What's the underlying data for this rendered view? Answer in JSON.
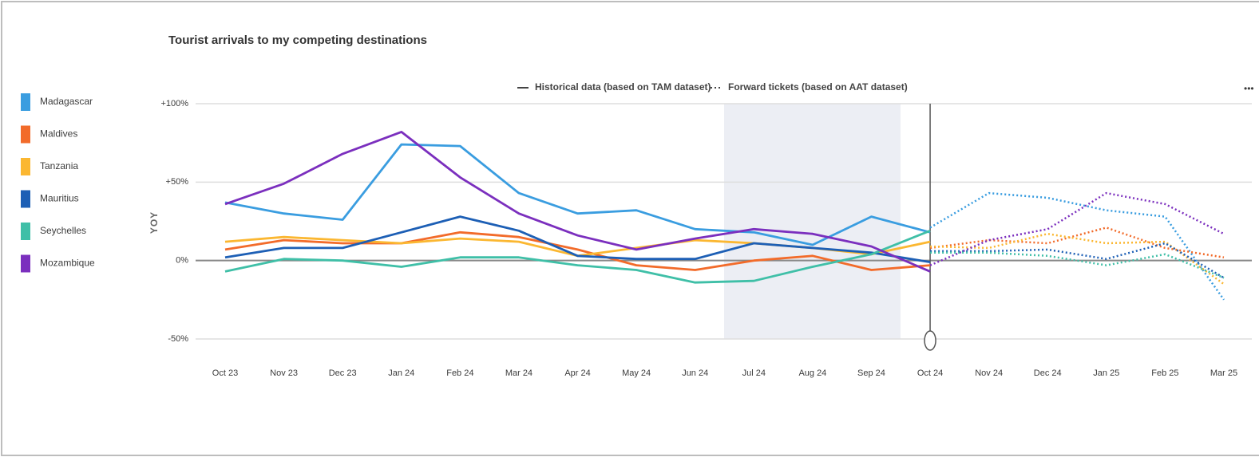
{
  "chart_data": {
    "type": "line",
    "title": "Tourist arrivals to my competing destinations",
    "y_label": "YOY",
    "line_styles": [
      {
        "label": "Historical data (based on TAM dataset)",
        "dashed": false
      },
      {
        "label": "Forward tickets (based on AAT dataset)",
        "dashed": true
      }
    ],
    "categories": [
      "Oct 23",
      "Nov 23",
      "Dec 23",
      "Jan 24",
      "Feb 24",
      "Mar 24",
      "Apr 24",
      "May 24",
      "Jun 24",
      "Jul 24",
      "Aug 24",
      "Sep 24",
      "Oct 24",
      "Nov 24",
      "Dec 24",
      "Jan 25",
      "Feb 25",
      "Mar 25"
    ],
    "ylim": [
      -50,
      100
    ],
    "yticks": [
      {
        "value": 100,
        "label": "+100%",
        "color": "#4e9a3e"
      },
      {
        "value": 50,
        "label": "+50%",
        "color": "#4e9a3e"
      },
      {
        "value": 0,
        "label": "0%",
        "color": "#333333"
      },
      {
        "value": -50,
        "label": "-50%",
        "color": "#c0392b"
      }
    ],
    "grid": true,
    "legend": "left",
    "series": [
      {
        "name": "Madagascar",
        "color": "#3a9de0",
        "values": [
          37,
          30,
          26,
          74,
          73,
          43,
          30,
          32,
          20,
          18,
          10,
          28,
          18,
          null,
          null,
          null,
          null,
          null
        ],
        "forward_values": [
          null,
          null,
          null,
          null,
          null,
          null,
          null,
          null,
          null,
          null,
          null,
          null,
          21,
          43,
          40,
          32,
          28,
          -25
        ]
      },
      {
        "name": "Maldives",
        "color": "#f26b2a",
        "values": [
          7,
          13,
          11,
          11,
          18,
          15,
          7,
          -3,
          -6,
          0,
          3,
          -6,
          -3,
          null,
          null,
          null,
          null,
          null
        ],
        "forward_values": [
          null,
          null,
          null,
          null,
          null,
          null,
          null,
          null,
          null,
          null,
          null,
          null,
          8,
          13,
          11,
          21,
          8,
          2
        ]
      },
      {
        "name": "Tanzania",
        "color": "#fbb731",
        "values": [
          12,
          15,
          13,
          11,
          14,
          12,
          3,
          8,
          13,
          11,
          8,
          4,
          12,
          null,
          null,
          null,
          null,
          null
        ],
        "forward_values": [
          null,
          null,
          null,
          null,
          null,
          null,
          null,
          null,
          null,
          null,
          null,
          null,
          9,
          8,
          17,
          11,
          12,
          -15
        ]
      },
      {
        "name": "Mauritius",
        "color": "#1d5fb5",
        "values": [
          2,
          8,
          8,
          18,
          28,
          19,
          3,
          1,
          1,
          11,
          8,
          5,
          -1,
          null,
          null,
          null,
          null,
          null
        ],
        "forward_values": [
          null,
          null,
          null,
          null,
          null,
          null,
          null,
          null,
          null,
          null,
          null,
          null,
          6,
          6,
          7,
          1,
          11,
          -11
        ]
      },
      {
        "name": "Seychelles",
        "color": "#3fbfa7",
        "values": [
          -7,
          1,
          0,
          -4,
          2,
          2,
          -3,
          -6,
          -14,
          -13,
          -4,
          4,
          19,
          null,
          null,
          null,
          null,
          null
        ],
        "forward_values": [
          null,
          null,
          null,
          null,
          null,
          null,
          null,
          null,
          null,
          null,
          null,
          null,
          5,
          5,
          3,
          -3,
          4,
          -11
        ]
      },
      {
        "name": "Mozambique",
        "color": "#7b2fbe",
        "values": [
          36,
          49,
          68,
          82,
          53,
          30,
          16,
          7,
          14,
          20,
          17,
          9,
          -7,
          null,
          null,
          null,
          null,
          null
        ],
        "forward_values": [
          null,
          null,
          null,
          null,
          null,
          null,
          null,
          null,
          null,
          null,
          null,
          null,
          -3,
          13,
          20,
          43,
          36,
          17
        ]
      }
    ]
  }
}
